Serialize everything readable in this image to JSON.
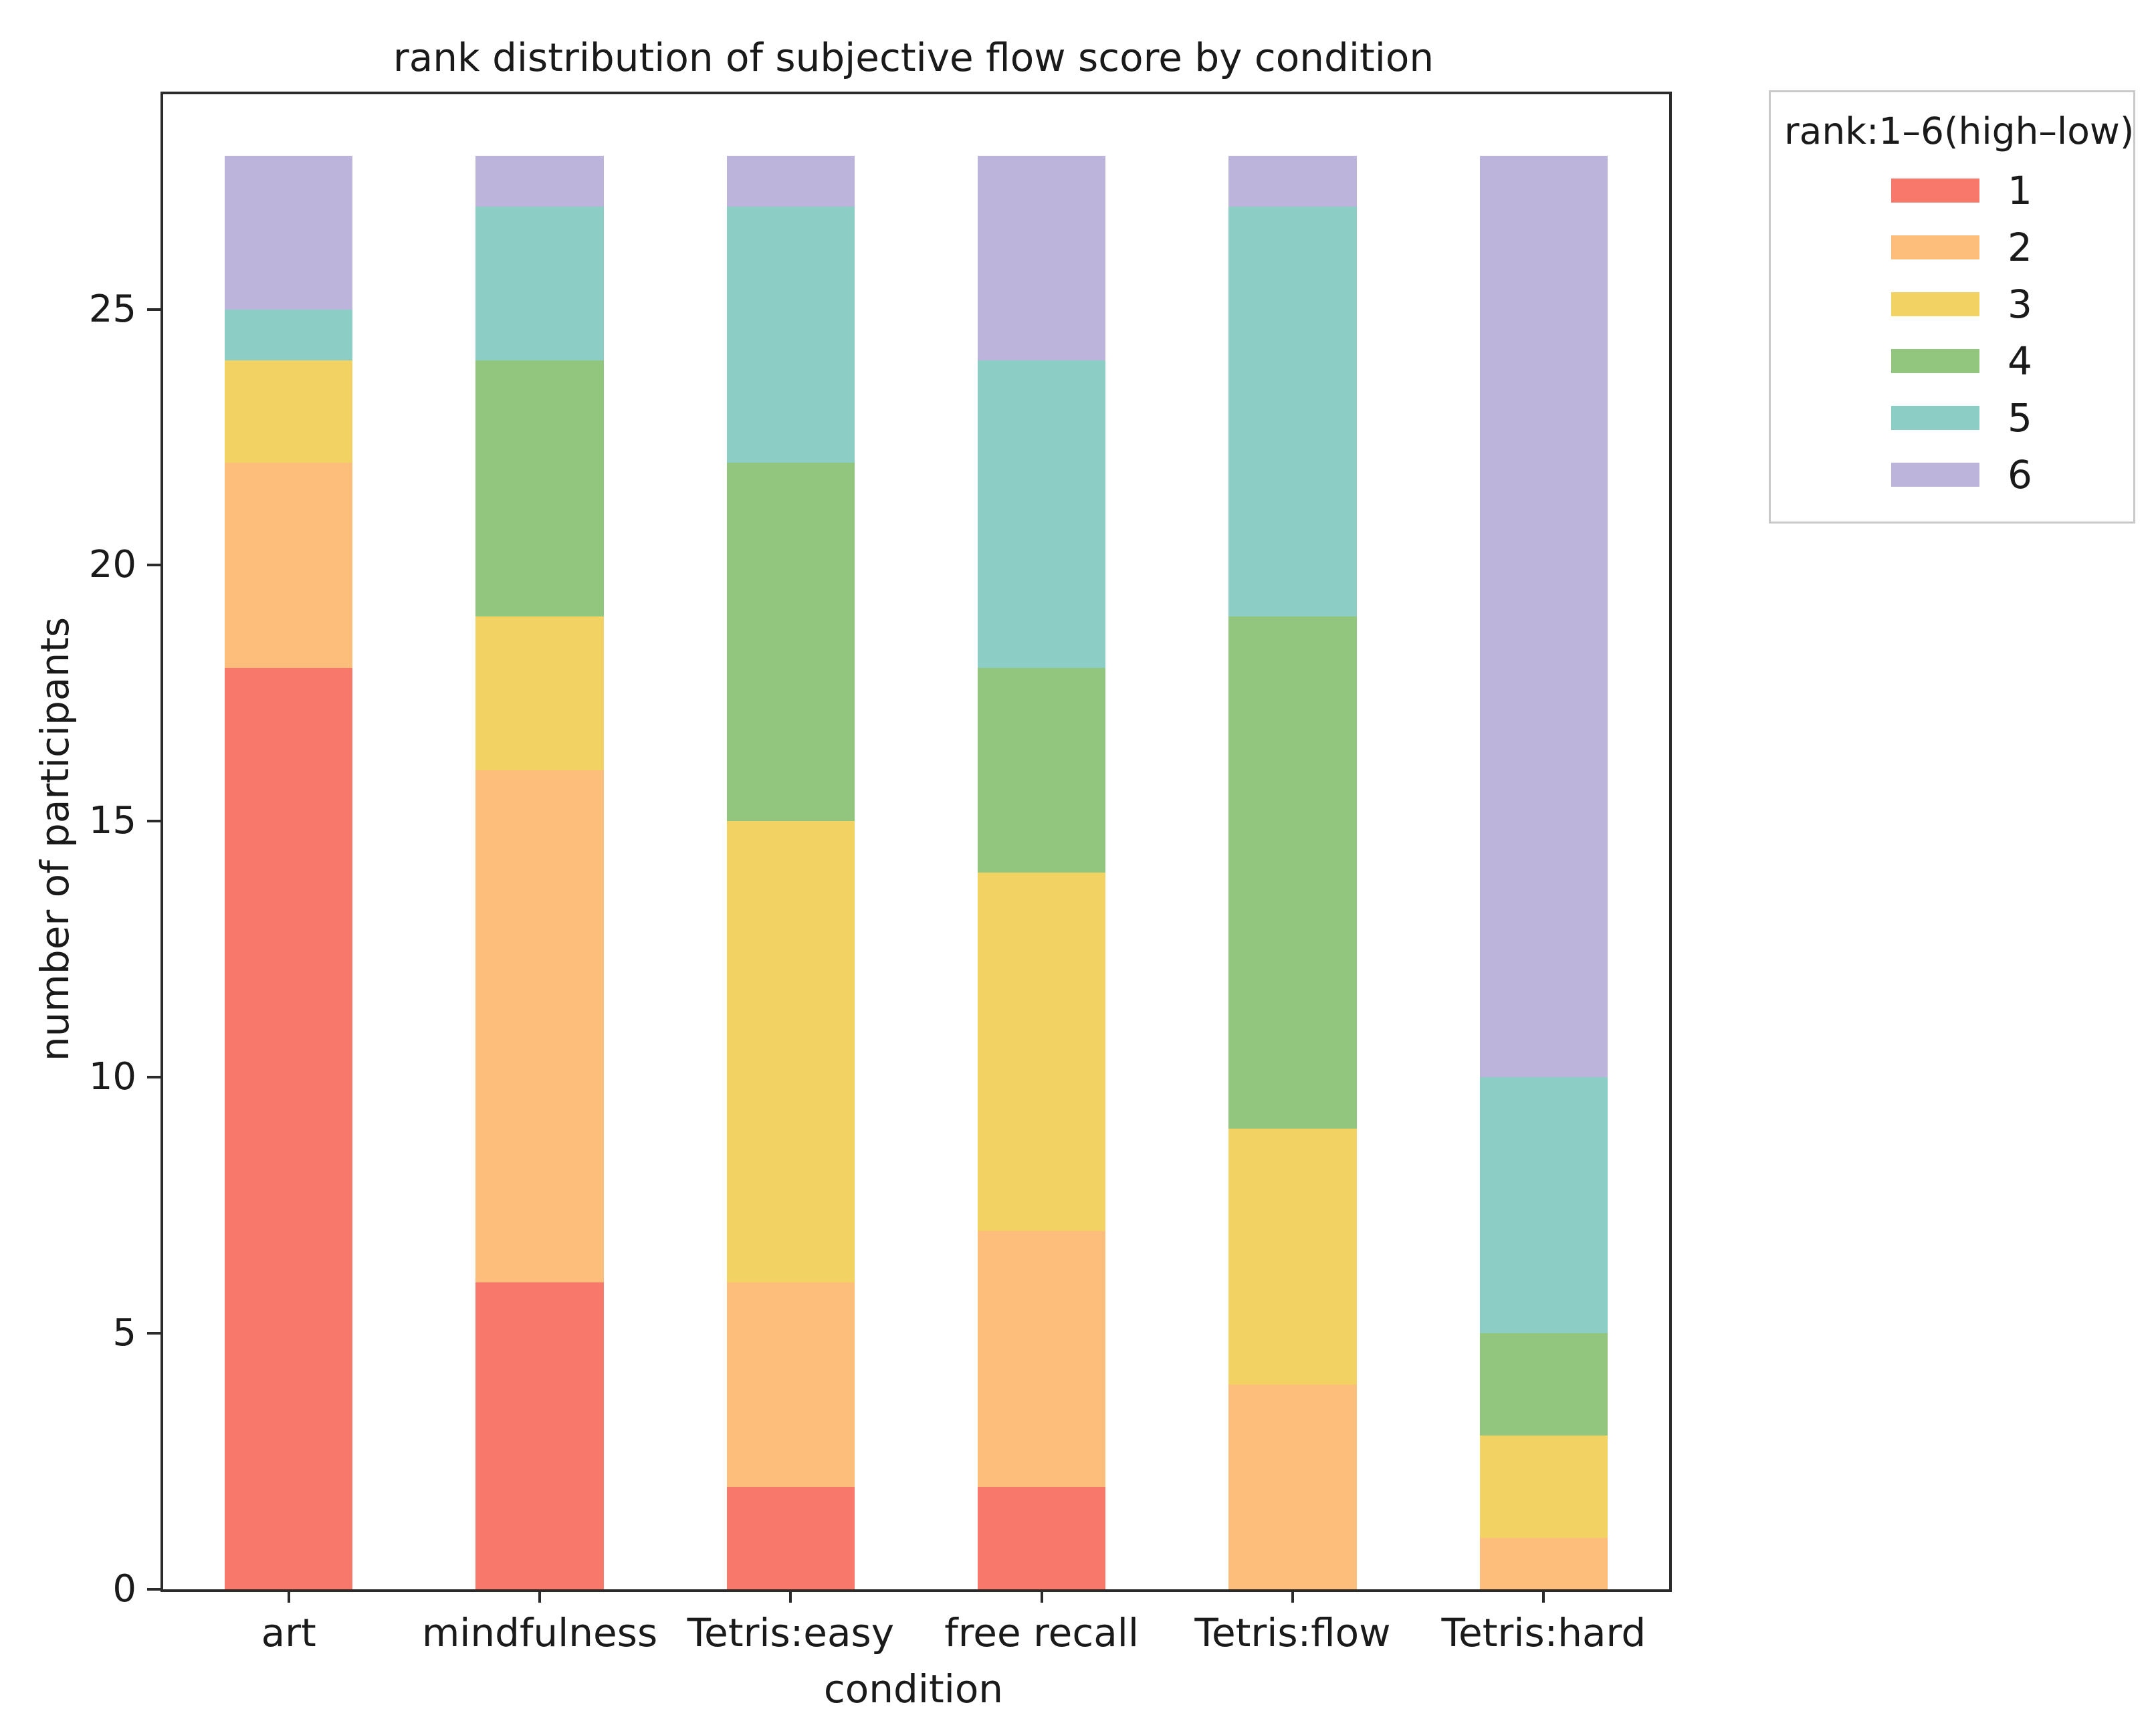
{
  "chart": {
    "title": "rank distribution of subjective flow score by condition",
    "xlabel": "condition",
    "ylabel": "number of participants"
  },
  "legend": {
    "title": "rank:1–6(high–low)",
    "entries": [
      {
        "label": "1",
        "color": "#F8796B"
      },
      {
        "label": "2",
        "color": "#FDBE7C"
      },
      {
        "label": "3",
        "color": "#F1D262"
      },
      {
        "label": "4",
        "color": "#92C57D"
      },
      {
        "label": "5",
        "color": "#8CCDC6"
      },
      {
        "label": "6",
        "color": "#BCB4DB"
      }
    ]
  },
  "chart_data": {
    "type": "bar",
    "stacked": true,
    "title": "rank distribution of subjective flow score by condition",
    "xlabel": "condition",
    "ylabel": "number of participants",
    "categories": [
      "art",
      "mindfulness",
      "Tetris:easy",
      "free recall",
      "Tetris:flow",
      "Tetris:hard"
    ],
    "series": [
      {
        "name": "1",
        "color": "#F8796B",
        "values": [
          18,
          6,
          2,
          2,
          0,
          0
        ]
      },
      {
        "name": "2",
        "color": "#FDBE7C",
        "values": [
          4,
          10,
          4,
          5,
          4,
          1
        ]
      },
      {
        "name": "3",
        "color": "#F1D262",
        "values": [
          2,
          3,
          9,
          7,
          5,
          2
        ]
      },
      {
        "name": "4",
        "color": "#92C57D",
        "values": [
          0,
          5,
          7,
          4,
          10,
          2
        ]
      },
      {
        "name": "5",
        "color": "#8CCDC6",
        "values": [
          1,
          3,
          5,
          6,
          8,
          5
        ]
      },
      {
        "name": "6",
        "color": "#BCB4DB",
        "values": [
          3,
          1,
          1,
          4,
          1,
          18
        ]
      }
    ],
    "bar_totals": [
      28,
      28,
      28,
      28,
      28,
      28
    ],
    "yticks": [
      0,
      5,
      10,
      15,
      20,
      25
    ],
    "ylim": [
      0,
      29.2
    ],
    "grid": false,
    "legend_position": "outside upper right",
    "legend_title": "rank:1–6(high–low)"
  }
}
